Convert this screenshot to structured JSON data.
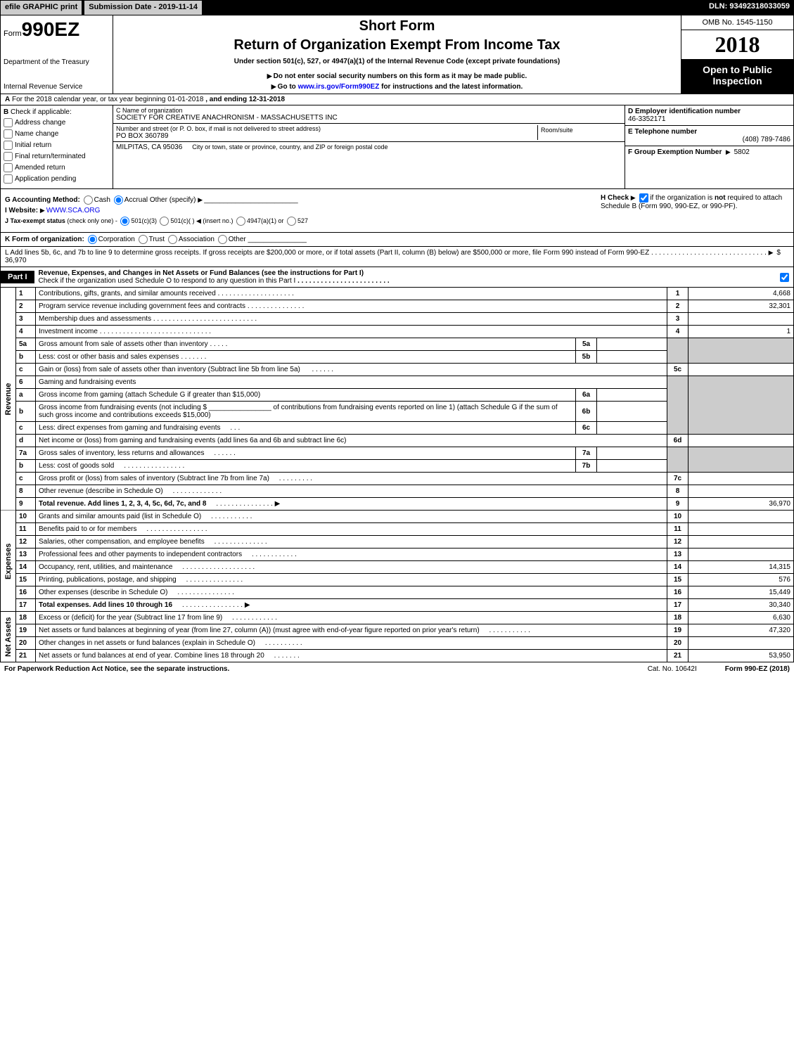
{
  "topbar": {
    "efile": "efile GRAPHIC print",
    "submission": "Submission Date - 2019-11-14",
    "dln": "DLN: 93492318033059"
  },
  "header": {
    "form_prefix": "Form",
    "form_number": "990EZ",
    "short": "Short Form",
    "title": "Return of Organization Exempt From Income Tax",
    "under": "Under section 501(c), 527, or 4947(a)(1) of the Internal Revenue Code (except private foundations)",
    "donot": "Do not enter social security numbers on this form as it may be made public.",
    "goto_prefix": "Go to ",
    "goto_link": "www.irs.gov/Form990EZ",
    "goto_suffix": " for instructions and the latest information.",
    "dept1": "Department of the Treasury",
    "dept2": "Internal Revenue Service",
    "omb": "OMB No. 1545-1150",
    "year": "2018",
    "open1": "Open to Public",
    "open2": "Inspection"
  },
  "line_a": {
    "label": "For the 2018 calendar year, or tax year beginning 01-01-2018",
    "ending": ", and ending 12-31-2018",
    "prefix": "A"
  },
  "b": {
    "label": "Check if applicable:",
    "prefix": "B",
    "checks": [
      "Address change",
      "Name change",
      "Initial return",
      "Final return/terminated",
      "Amended return",
      "Application pending"
    ],
    "c_label": "C Name of organization",
    "c_name": "SOCIETY FOR CREATIVE ANACHRONISM - MASSACHUSETTS INC",
    "street_label": "Number and street (or P. O. box, if mail is not delivered to street address)",
    "street": "PO BOX 360789",
    "room_label": "Room/suite",
    "city_label": "City or town, state or province, country, and ZIP or foreign postal code",
    "city": "MILPITAS, CA  95036",
    "d_label": "D Employer identification number",
    "d_val": "46-3352171",
    "e_label": "E Telephone number",
    "e_val": "(408) 789-7486",
    "f_label": "F Group Exemption Number",
    "f_val": "5802"
  },
  "gh": {
    "g_label": "G Accounting Method:",
    "g_cash": "Cash",
    "g_accrual": "Accrual",
    "g_other": "Other (specify)",
    "website_label": "I Website:",
    "website": "WWW.SCA.ORG",
    "j_label": "J Tax-exempt status",
    "j_note": "(check only one) -",
    "j1": "501(c)(3)",
    "j2": "501(c)(  )",
    "j2_insert": "(insert no.)",
    "j3": "4947(a)(1) or",
    "j4": "527",
    "h_label": "H  Check",
    "h_text1": "if the organization is ",
    "h_not": "not",
    "h_text2": " required to attach Schedule B (Form 990, 990-EZ, or 990-PF)."
  },
  "k": {
    "label": "K Form of organization:",
    "corp": "Corporation",
    "trust": "Trust",
    "assoc": "Association",
    "other": "Other"
  },
  "l": {
    "text": "L Add lines 5b, 6c, and 7b to line 9 to determine gross receipts. If gross receipts are $200,000 or more, or if total assets (Part II, column (B) below) are $500,000 or more, file Form 990 instead of Form 990-EZ",
    "amount": "$ 36,970"
  },
  "part1": {
    "tab": "Part I",
    "title": "Revenue, Expenses, and Changes in Net Assets or Fund Balances (see the instructions for Part I)",
    "check_text": "Check if the organization used Schedule O to respond to any question in this Part I"
  },
  "sections": {
    "revenue": "Revenue",
    "expenses": "Expenses",
    "netassets": "Net Assets"
  },
  "rows": {
    "1": {
      "n": "1",
      "d": "Contributions, gifts, grants, and similar amounts received",
      "rn": "1",
      "rv": "4,668"
    },
    "2": {
      "n": "2",
      "d": "Program service revenue including government fees and contracts",
      "rn": "2",
      "rv": "32,301"
    },
    "3": {
      "n": "3",
      "d": "Membership dues and assessments",
      "rn": "3",
      "rv": ""
    },
    "4": {
      "n": "4",
      "d": "Investment income",
      "rn": "4",
      "rv": "1"
    },
    "5a": {
      "n": "5a",
      "d": "Gross amount from sale of assets other than inventory",
      "mn": "5a",
      "mv": ""
    },
    "5b": {
      "n": "b",
      "d": "Less: cost or other basis and sales expenses",
      "mn": "5b",
      "mv": ""
    },
    "5c": {
      "n": "c",
      "d": "Gain or (loss) from sale of assets other than inventory (Subtract line 5b from line 5a)",
      "rn": "5c",
      "rv": ""
    },
    "6": {
      "n": "6",
      "d": "Gaming and fundraising events"
    },
    "6a": {
      "n": "a",
      "d": "Gross income from gaming (attach Schedule G if greater than $15,000)",
      "mn": "6a",
      "mv": ""
    },
    "6b": {
      "n": "b",
      "d": "Gross income from fundraising events (not including $ ________________ of contributions from fundraising events reported on line 1) (attach Schedule G if the sum of such gross income and contributions exceeds $15,000)",
      "mn": "6b",
      "mv": ""
    },
    "6c": {
      "n": "c",
      "d": "Less: direct expenses from gaming and fundraising events",
      "mn": "6c",
      "mv": ""
    },
    "6d": {
      "n": "d",
      "d": "Net income or (loss) from gaming and fundraising events (add lines 6a and 6b and subtract line 6c)",
      "rn": "6d",
      "rv": ""
    },
    "7a": {
      "n": "7a",
      "d": "Gross sales of inventory, less returns and allowances",
      "mn": "7a",
      "mv": ""
    },
    "7b": {
      "n": "b",
      "d": "Less: cost of goods sold",
      "mn": "7b",
      "mv": ""
    },
    "7c": {
      "n": "c",
      "d": "Gross profit or (loss) from sales of inventory (Subtract line 7b from line 7a)",
      "rn": "7c",
      "rv": ""
    },
    "8": {
      "n": "8",
      "d": "Other revenue (describe in Schedule O)",
      "rn": "8",
      "rv": ""
    },
    "9": {
      "n": "9",
      "d": "Total revenue. Add lines 1, 2, 3, 4, 5c, 6d, 7c, and 8",
      "rn": "9",
      "rv": "36,970"
    },
    "10": {
      "n": "10",
      "d": "Grants and similar amounts paid (list in Schedule O)",
      "rn": "10",
      "rv": ""
    },
    "11": {
      "n": "11",
      "d": "Benefits paid to or for members",
      "rn": "11",
      "rv": ""
    },
    "12": {
      "n": "12",
      "d": "Salaries, other compensation, and employee benefits",
      "rn": "12",
      "rv": ""
    },
    "13": {
      "n": "13",
      "d": "Professional fees and other payments to independent contractors",
      "rn": "13",
      "rv": ""
    },
    "14": {
      "n": "14",
      "d": "Occupancy, rent, utilities, and maintenance",
      "rn": "14",
      "rv": "14,315"
    },
    "15": {
      "n": "15",
      "d": "Printing, publications, postage, and shipping",
      "rn": "15",
      "rv": "576"
    },
    "16": {
      "n": "16",
      "d": "Other expenses (describe in Schedule O)",
      "rn": "16",
      "rv": "15,449"
    },
    "17": {
      "n": "17",
      "d": "Total expenses. Add lines 10 through 16",
      "rn": "17",
      "rv": "30,340"
    },
    "18": {
      "n": "18",
      "d": "Excess or (deficit) for the year (Subtract line 17 from line 9)",
      "rn": "18",
      "rv": "6,630"
    },
    "19": {
      "n": "19",
      "d": "Net assets or fund balances at beginning of year (from line 27, column (A)) (must agree with end-of-year figure reported on prior year's return)",
      "rn": "19",
      "rv": "47,320"
    },
    "20": {
      "n": "20",
      "d": "Other changes in net assets or fund balances (explain in Schedule O)",
      "rn": "20",
      "rv": ""
    },
    "21": {
      "n": "21",
      "d": "Net assets or fund balances at end of year. Combine lines 18 through 20",
      "rn": "21",
      "rv": "53,950"
    }
  },
  "footer": {
    "left": "For Paperwork Reduction Act Notice, see the separate instructions.",
    "mid": "Cat. No. 10642I",
    "right": "Form 990-EZ (2018)"
  }
}
